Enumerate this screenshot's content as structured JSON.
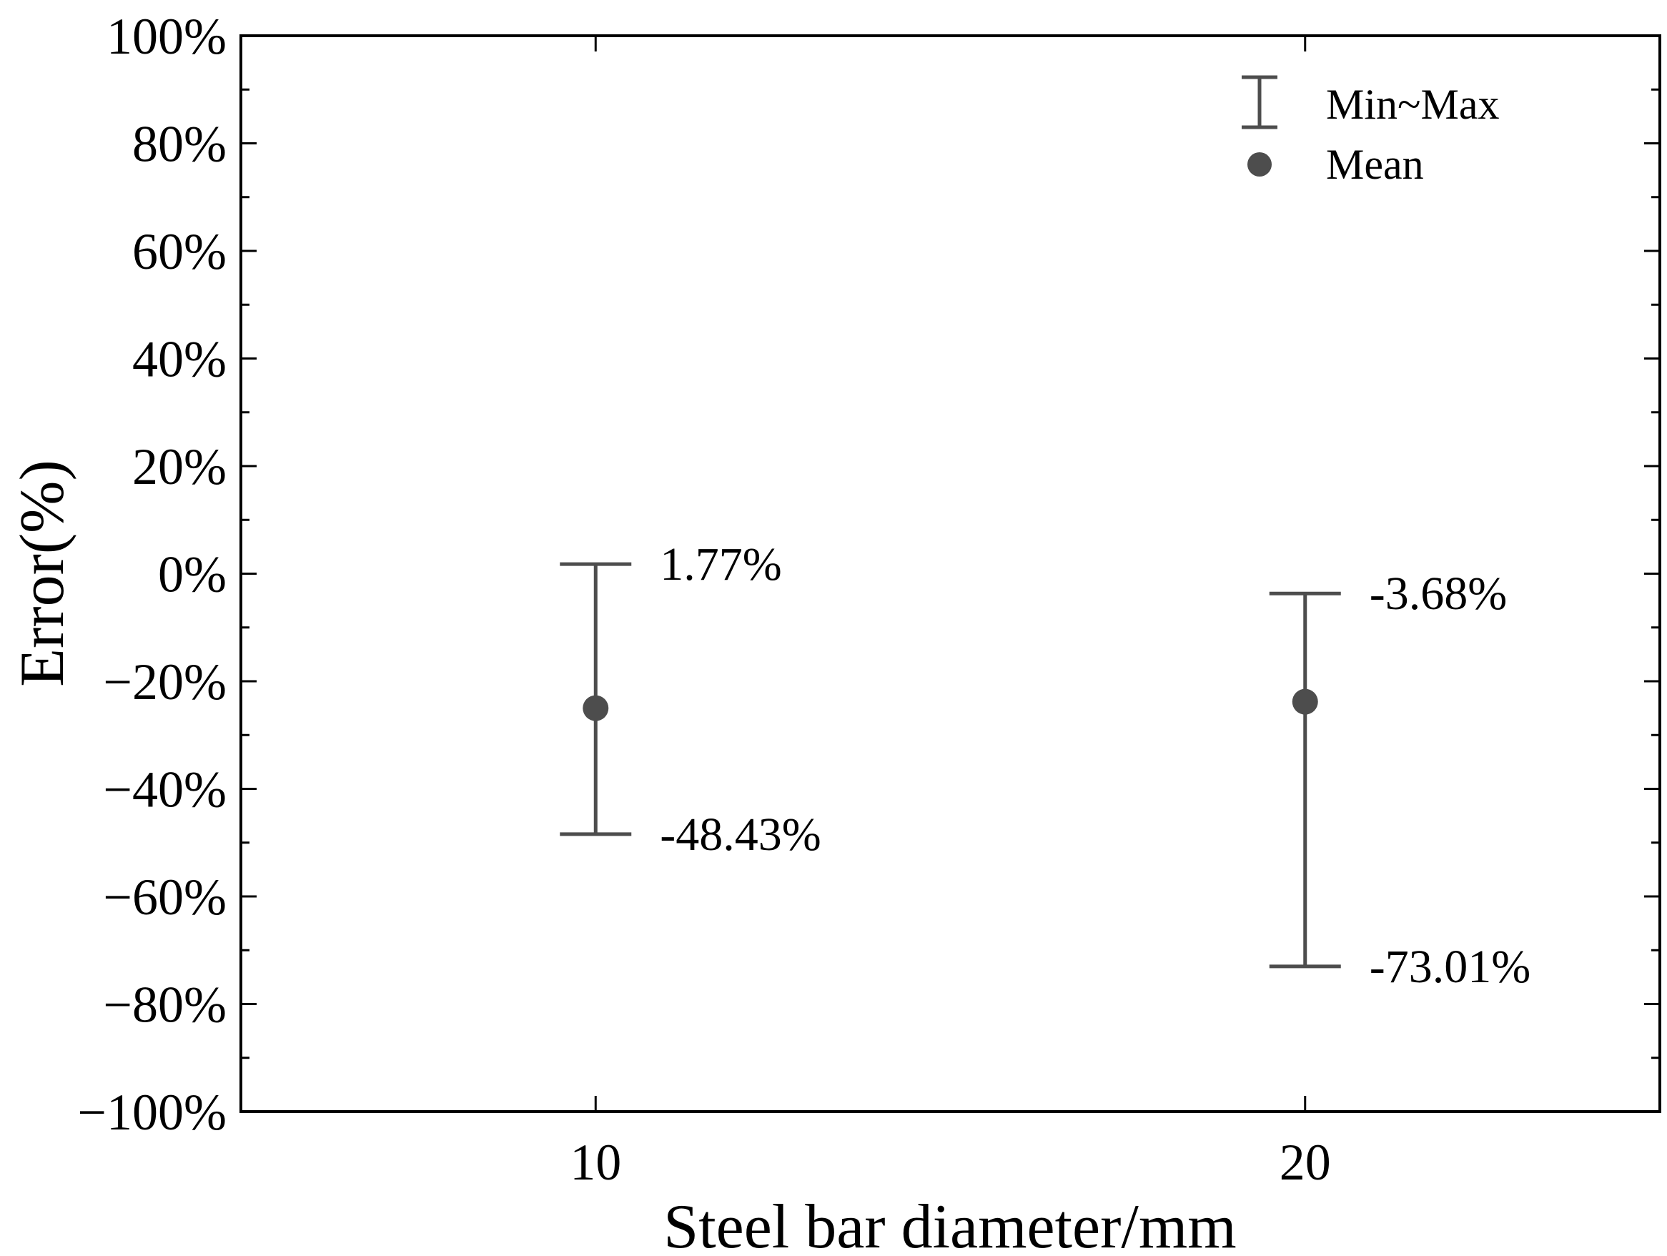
{
  "chart_data": {
    "type": "errorbar",
    "title": "",
    "xlabel": "Steel bar diameter/mm",
    "ylabel": "Error(%)",
    "ylim": [
      -100,
      100
    ],
    "xlim": [
      5,
      25
    ],
    "y_ticks": [
      "100%",
      "80%",
      "60%",
      "40%",
      "20%",
      "0%",
      "−20%",
      "−40%",
      "−60%",
      "−80%",
      "−100%"
    ],
    "y_tick_values": [
      100,
      80,
      60,
      40,
      20,
      0,
      -20,
      -40,
      -60,
      -80,
      -100
    ],
    "x_ticks": [
      "10",
      "20"
    ],
    "x_tick_values": [
      10,
      20
    ],
    "grid": false,
    "legend": {
      "position": "top-right",
      "entries": [
        {
          "label": "Min~Max",
          "symbol": "errorbar"
        },
        {
          "label": "Mean",
          "symbol": "dot"
        }
      ]
    },
    "series": [
      {
        "name": "Error",
        "color": "#4d4d4d",
        "points": [
          {
            "x": 10,
            "min": -48.43,
            "max": 1.77,
            "mean": -25.0,
            "min_label": "-48.43%",
            "max_label": "1.77%"
          },
          {
            "x": 20,
            "min": -73.01,
            "max": -3.68,
            "mean": -23.8,
            "min_label": "-73.01%",
            "max_label": "-3.68%"
          }
        ]
      }
    ]
  }
}
